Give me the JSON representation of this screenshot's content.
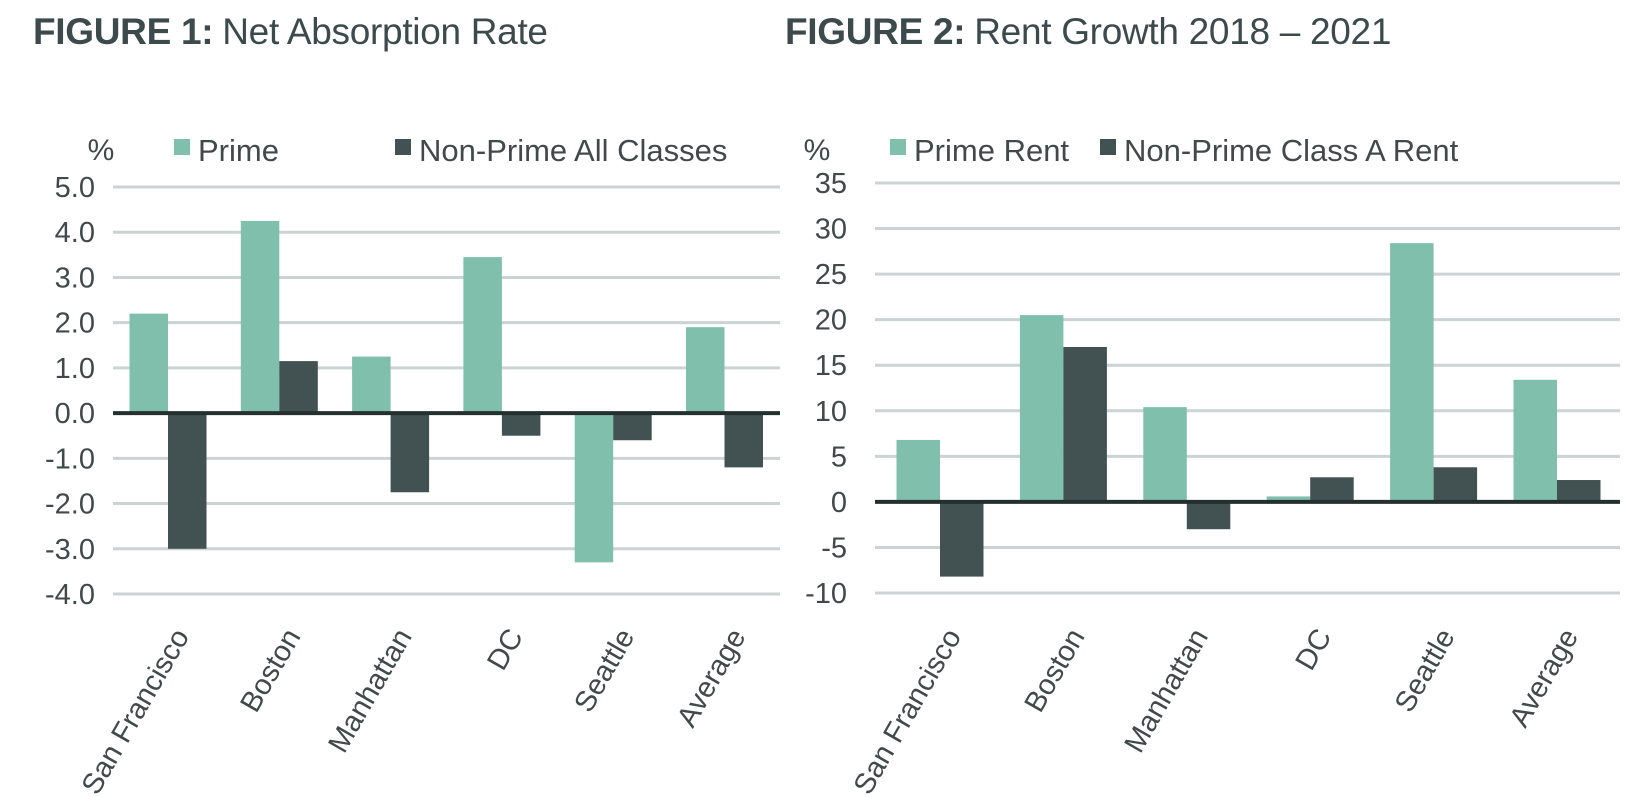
{
  "page": {
    "background": "#ffffff"
  },
  "colors": {
    "prime": "#7fbfab",
    "non_prime": "#425152",
    "gridline": "#ccd3d5",
    "zero_line": "#24302e",
    "title": "#3c4a4c",
    "text": "#42494b"
  },
  "chart_data": [
    {
      "type": "bar",
      "title": "FIGURE 1: Net Absorption Rate",
      "title_prefix": "FIGURE 1:",
      "title_rest": "Net Absorption Rate",
      "unit": "%",
      "categories": [
        "San Francisco",
        "Boston",
        "Manhattan",
        "DC",
        "Seattle",
        "Average"
      ],
      "series": [
        {
          "name": "Prime",
          "color": "#7fbfab",
          "values": [
            2.2,
            4.25,
            1.25,
            3.45,
            -3.3,
            1.9
          ]
        },
        {
          "name": "Non-Prime All Classes",
          "color": "#425152",
          "values": [
            -3.0,
            1.15,
            -1.75,
            -0.5,
            -0.6,
            -1.2
          ]
        }
      ],
      "yticks": [
        "5.0",
        "4.0",
        "3.0",
        "2.0",
        "1.0",
        "0.0",
        "-1.0",
        "-2.0",
        "-3.0",
        "-4.0"
      ],
      "ylim": [
        -4,
        5
      ],
      "grid": true,
      "legend_position": "top"
    },
    {
      "type": "bar",
      "title": "FIGURE 2: Rent Growth 2018 – 2021",
      "title_prefix": "FIGURE 2:",
      "title_rest": "Rent Growth 2018 – 2021",
      "unit": "%",
      "categories": [
        "San Francisco",
        "Boston",
        "Manhattan",
        "DC",
        "Seattle",
        "Average"
      ],
      "series": [
        {
          "name": "Prime Rent",
          "color": "#7fbfab",
          "values": [
            6.8,
            20.5,
            10.4,
            0.6,
            28.4,
            13.4
          ]
        },
        {
          "name": "Non-Prime Class A Rent",
          "color": "#425152",
          "values": [
            -8.2,
            17.0,
            -3.0,
            2.7,
            3.8,
            2.4
          ]
        }
      ],
      "yticks": [
        "35",
        "30",
        "25",
        "20",
        "15",
        "10",
        "5",
        "0",
        "-5",
        "-10"
      ],
      "ylim": [
        -10,
        35
      ],
      "grid": true,
      "legend_position": "top"
    }
  ]
}
